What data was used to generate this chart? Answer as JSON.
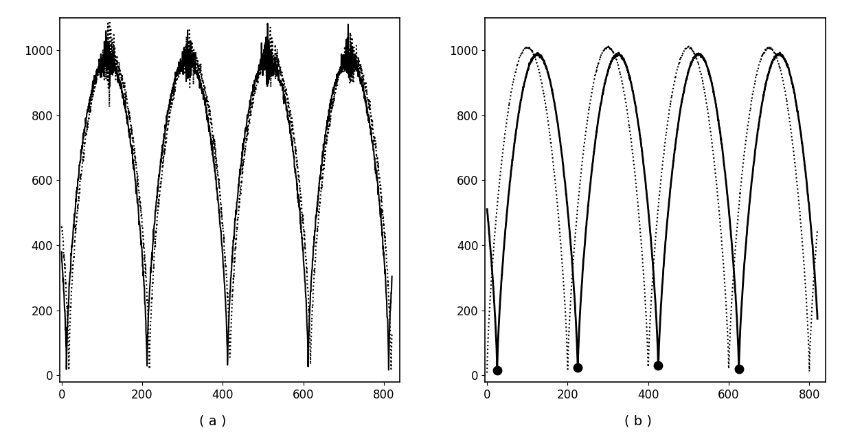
{
  "figsize": [
    12.39,
    6.39
  ],
  "dpi": 100,
  "xlim": [
    -5,
    840
  ],
  "ylim": [
    -20,
    1100
  ],
  "xticks": [
    0,
    200,
    400,
    600,
    800
  ],
  "yticks": [
    0,
    200,
    400,
    600,
    800,
    1000
  ],
  "label_a": "( a )",
  "label_b": "( b )",
  "background": "#ffffff",
  "line_color": "#000000"
}
